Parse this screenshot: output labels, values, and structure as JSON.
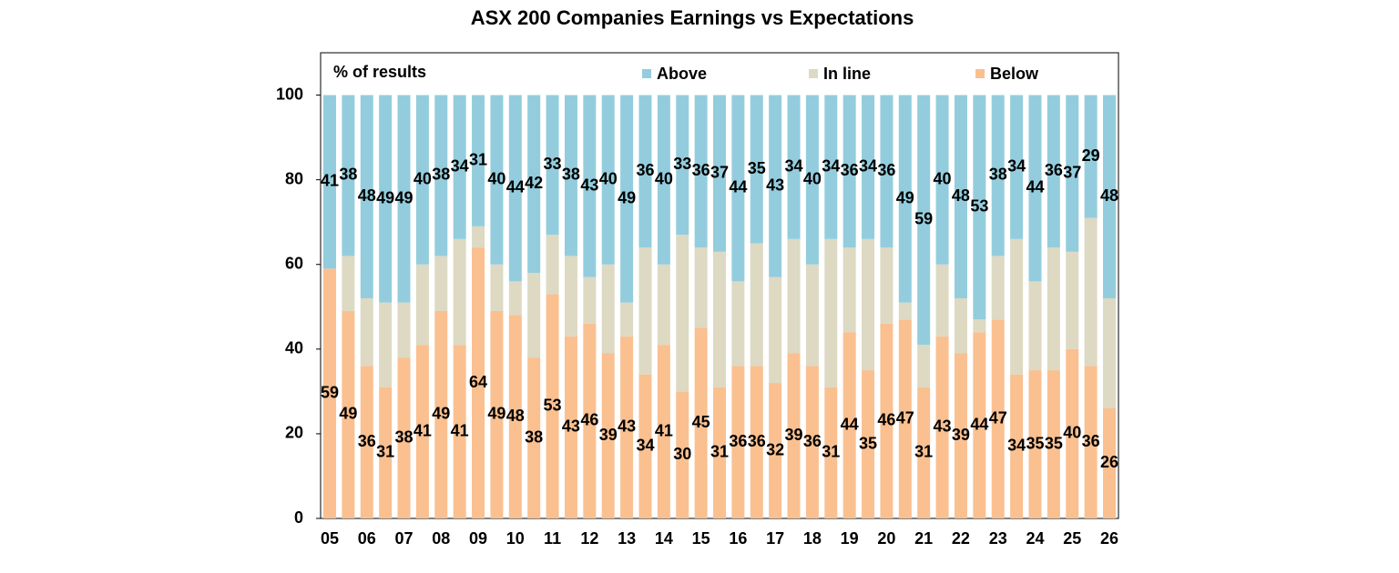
{
  "chart_data": {
    "type": "stacked_bar",
    "title": "ASX 200 Companies Earnings vs Expectations",
    "y_label": "% of results",
    "categories": [
      "05",
      null,
      "06",
      null,
      "07",
      null,
      "08",
      null,
      "09",
      null,
      "10",
      null,
      "11",
      null,
      "12",
      null,
      "13",
      null,
      "14",
      null,
      "15",
      null,
      "16",
      null,
      "17",
      null,
      "18",
      null,
      "19",
      null,
      "20",
      null,
      "21",
      null,
      "22",
      null,
      "23",
      null,
      "24",
      null,
      "25",
      null,
      "26"
    ],
    "series": [
      {
        "name": "Below",
        "color": "#fac090",
        "values": [
          59,
          49,
          36,
          31,
          38,
          41,
          49,
          41,
          64,
          49,
          48,
          38,
          53,
          43,
          46,
          39,
          43,
          34,
          41,
          30,
          45,
          31,
          36,
          36,
          32,
          39,
          36,
          31,
          44,
          35,
          46,
          47,
          31,
          43,
          39,
          44,
          47,
          34,
          35,
          35,
          40,
          36,
          26
        ]
      },
      {
        "name": "In line",
        "color": "#ddd9c3",
        "values": [
          0,
          13,
          16,
          20,
          13,
          19,
          13,
          25,
          5,
          11,
          8,
          20,
          14,
          19,
          11,
          21,
          8,
          30,
          19,
          37,
          19,
          32,
          20,
          29,
          25,
          27,
          24,
          35,
          20,
          31,
          18,
          4,
          10,
          17,
          13,
          3,
          15,
          32,
          21,
          29,
          23,
          35,
          26
        ]
      },
      {
        "name": "Above",
        "color": "#93cddd",
        "values": [
          41,
          38,
          48,
          49,
          49,
          40,
          38,
          34,
          31,
          40,
          44,
          42,
          33,
          38,
          43,
          40,
          49,
          36,
          40,
          33,
          36,
          37,
          44,
          35,
          43,
          34,
          40,
          34,
          36,
          34,
          36,
          49,
          59,
          40,
          48,
          53,
          38,
          34,
          44,
          36,
          37,
          29,
          48
        ]
      }
    ],
    "labelled_series": [
      "Below",
      "Above"
    ],
    "ylim": [
      0,
      110
    ],
    "yticks": [
      0,
      20,
      40,
      60,
      80,
      100
    ],
    "grid": false,
    "legend": "top"
  }
}
